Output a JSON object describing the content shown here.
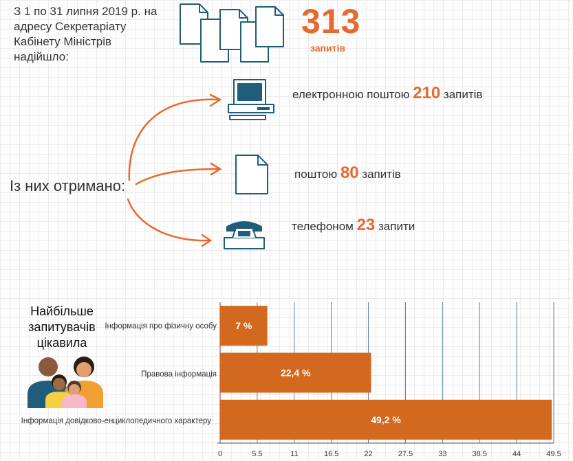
{
  "intro": "З 1 по 31 липня 2019 р. на адресу Секретаріату Кабінету Міністрів надійшло:",
  "total": {
    "value": "313",
    "unit": "запитів"
  },
  "received_label": "Із них отримано:",
  "channels": [
    {
      "pre": "електронною поштою",
      "num": "210",
      "post": "запитів",
      "icon": "computer-icon"
    },
    {
      "pre": "поштою",
      "num": "80",
      "post": "запитів",
      "icon": "document-icon"
    },
    {
      "pre": "телефоном",
      "num": "23",
      "post": "запити",
      "icon": "telephone-icon"
    }
  ],
  "topics_title": "Найбільше запитувачів цікавила",
  "colors": {
    "accent": "#E8692D",
    "bar": "#D2691E",
    "icon_blue": "#1F5D7A"
  },
  "chart_data": {
    "type": "bar",
    "orientation": "horizontal",
    "categories": [
      "Інформація про фізичну особу",
      "Правова інформація",
      "Інформація довідково-енциклопедичного характеру"
    ],
    "values": [
      7,
      22.4,
      49.2
    ],
    "value_labels": [
      "7 %",
      "22,4 %",
      "49,2 %"
    ],
    "xlim": [
      0,
      49.5
    ],
    "xticks": [
      "0",
      "5.5",
      "11",
      "16.5",
      "22",
      "27.5",
      "33",
      "38.5",
      "44",
      "49.5"
    ],
    "grid": true
  }
}
